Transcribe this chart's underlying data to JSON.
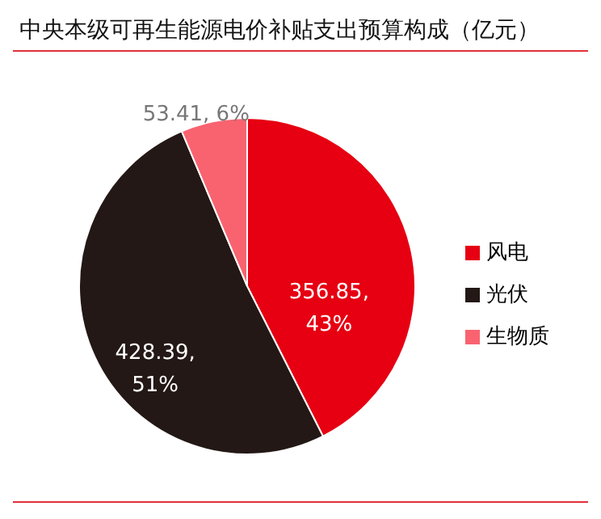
{
  "chart_data": {
    "type": "pie",
    "title": "中央本级可再生能源电价补贴支出预算构成（亿元）",
    "categories": [
      "风电",
      "光伏",
      "生物质"
    ],
    "values": [
      356.85,
      428.39,
      53.41
    ],
    "colors": [
      "#e60012",
      "#231815",
      "#f8636f"
    ],
    "value_labels": [
      "356.85, 43%",
      "428.39, 51%",
      "53.41, 6%"
    ],
    "legend": "right"
  }
}
